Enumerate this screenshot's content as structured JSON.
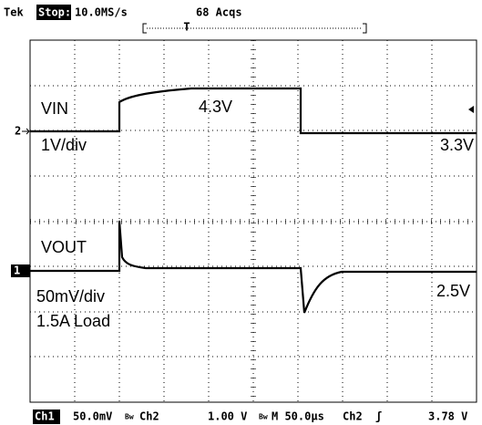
{
  "header": {
    "brand": "Tek",
    "status": "Stop:",
    "sample_rate": "10.0MS/s",
    "acquisitions": "68 Acqs",
    "trigger_position": "T"
  },
  "markers": {
    "ch2": "2",
    "ch1": "1"
  },
  "labels": {
    "vin": "VIN",
    "vin_high": "4.3V",
    "vin_scale": "1V/div",
    "vin_low": "3.3V",
    "vout": "VOUT",
    "vout_scale": "50mV/div",
    "load": "1.5A Load",
    "vout_level": "2.5V"
  },
  "footer": {
    "ch1": "Ch1",
    "ch1_scale": "50.0mV",
    "ch1_bw": "Bw",
    "ch2": "Ch2",
    "ch2_scale": "1.00 V",
    "ch2_bw": "Bw",
    "timebase": "M 50.0µs",
    "trigger_source": "Ch2",
    "trigger_slope": "ʃ",
    "trigger_level": "3.78 V"
  }
}
